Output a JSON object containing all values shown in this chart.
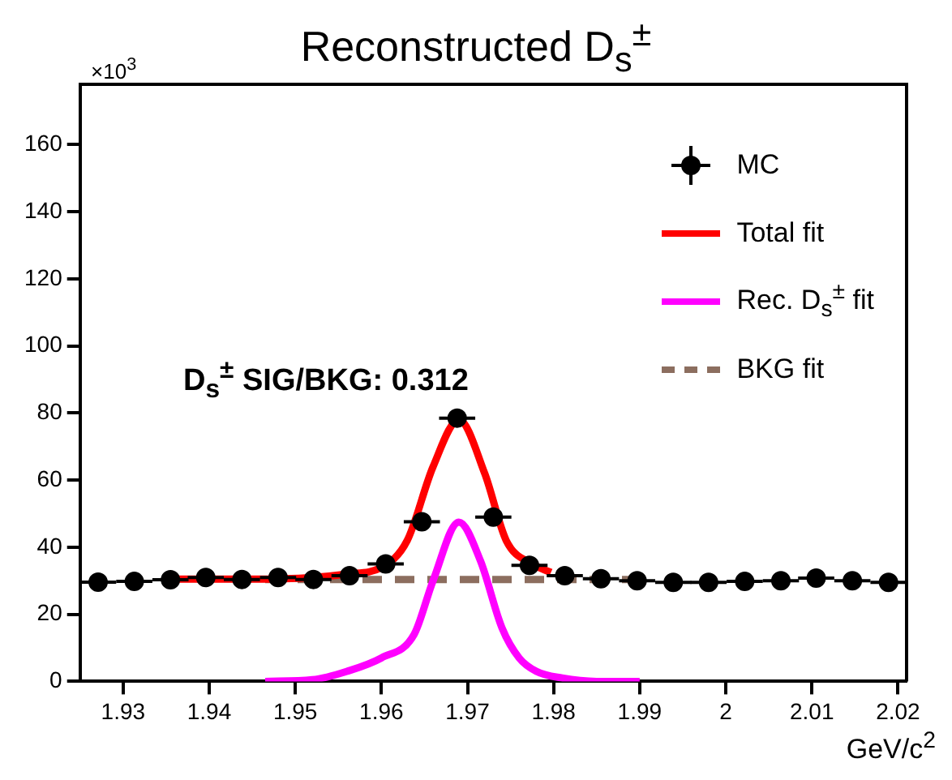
{
  "chart_data": {
    "type": "scatter",
    "title": "Reconstructed D$_{s}$$^{±}$",
    "xlabel": "GeV/c$^{2}$",
    "annotations": [
      "×10$^{3}$",
      "D$_{s}$$^{±}$ SIG/BKG: 0.312"
    ],
    "xlim": [
      1.925,
      2.021
    ],
    "xticks": [
      1.93,
      1.94,
      1.95,
      1.96,
      1.97,
      1.98,
      1.99,
      2,
      2.01,
      2.02
    ],
    "ylim": [
      0,
      178
    ],
    "yticks": [
      0,
      20,
      40,
      60,
      80,
      100,
      120,
      140,
      160
    ],
    "grid": false,
    "legend": "top right",
    "series": [
      {
        "name": "MC",
        "type": "scatter",
        "marker": "circle",
        "color": "#000000",
        "x": [
          1.9271,
          1.9313,
          1.9355,
          1.9396,
          1.9438,
          1.948,
          1.9521,
          1.9563,
          1.9605,
          1.9647,
          1.9688,
          1.973,
          1.9772,
          1.9813,
          1.9855,
          1.9897,
          1.9939,
          1.998,
          2.0022,
          2.0064,
          2.0105,
          2.0147,
          2.0189
        ],
        "values": [
          29.6,
          29.8,
          30.3,
          31,
          30.4,
          31,
          30.4,
          31.5,
          35,
          47.6,
          78.5,
          49,
          34.6,
          31.5,
          30.6,
          30,
          29.5,
          29.5,
          29.8,
          30,
          30.8,
          30,
          29.5
        ],
        "xerrors": [
          0.0021,
          0.0021,
          0.0021,
          0.0021,
          0.0021,
          0.0021,
          0.0021,
          0.0021,
          0.0021,
          0.0021,
          0.0021,
          0.0021,
          0.0021,
          0.0021,
          0.0021,
          0.0021,
          0.0021,
          0.0021,
          0.0021,
          0.0021,
          0.0021,
          0.0021,
          0.0021
        ]
      },
      {
        "name": "Total fit",
        "type": "line",
        "marker": "none",
        "color": "#ff0000",
        "x": [
          1.9356,
          1.945,
          1.952,
          1.956,
          1.96,
          1.963,
          1.966,
          1.969,
          1.972,
          1.9745,
          1.9775,
          1.9797
        ],
        "values": [
          30.5,
          30.5,
          31,
          32,
          34,
          42,
          64,
          78,
          62,
          42,
          35,
          32.5
        ]
      },
      {
        "name": "Rec. D$_{s}$$^{±}$ fit",
        "type": "line",
        "marker": "none",
        "color": "#ff00ff",
        "x": [
          1.9465,
          1.952,
          1.956,
          1.96,
          1.9638,
          1.966,
          1.969,
          1.9715,
          1.974,
          1.976,
          1.978,
          1.981,
          1.985,
          1.99
        ],
        "values": [
          0,
          0.5,
          3,
          7,
          14,
          30,
          47.5,
          36,
          16,
          7,
          3,
          1,
          0,
          0
        ]
      },
      {
        "name": "BKG fit",
        "type": "line",
        "marker": "none",
        "line_style": "dashed",
        "color": "#8c6e5f",
        "x": [
          1.9465,
          1.99
        ],
        "values": [
          30.4,
          30.4
        ]
      }
    ]
  }
}
